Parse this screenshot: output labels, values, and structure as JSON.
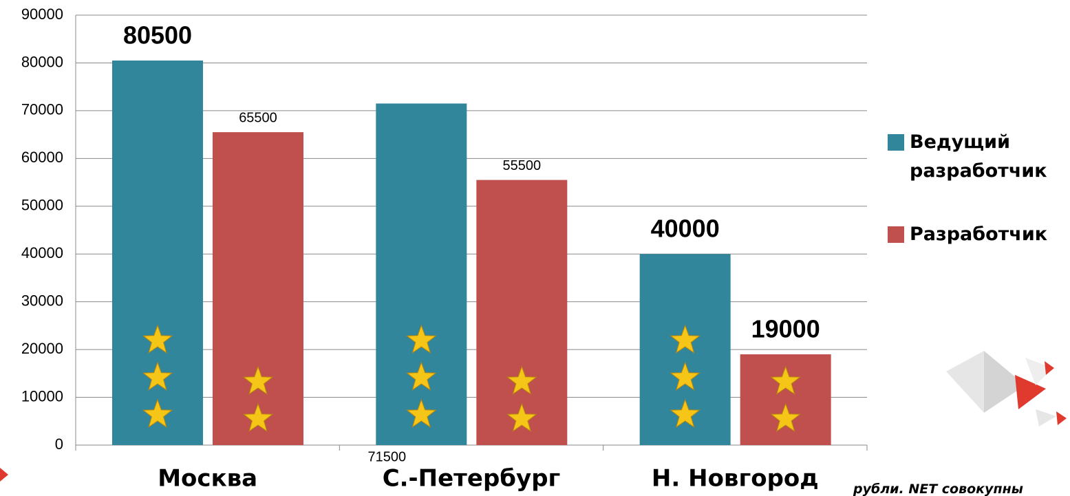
{
  "chart_data": {
    "type": "bar",
    "categories": [
      "Москва",
      "С.-Петербург",
      "Н. Новгород"
    ],
    "series": [
      {
        "name": "Ведущий разработчик",
        "color": "#31869b",
        "values": [
          80500,
          71500,
          40000
        ]
      },
      {
        "name": "Разработчик",
        "color": "#c0504d",
        "values": [
          65500,
          55500,
          19000
        ]
      }
    ],
    "ylim": [
      0,
      90000
    ],
    "yticks": [
      0,
      10000,
      20000,
      30000,
      40000,
      50000,
      60000,
      70000,
      80000,
      90000
    ],
    "grid": true,
    "legend": "right",
    "annotation": "рубли. NET совокупны"
  }
}
